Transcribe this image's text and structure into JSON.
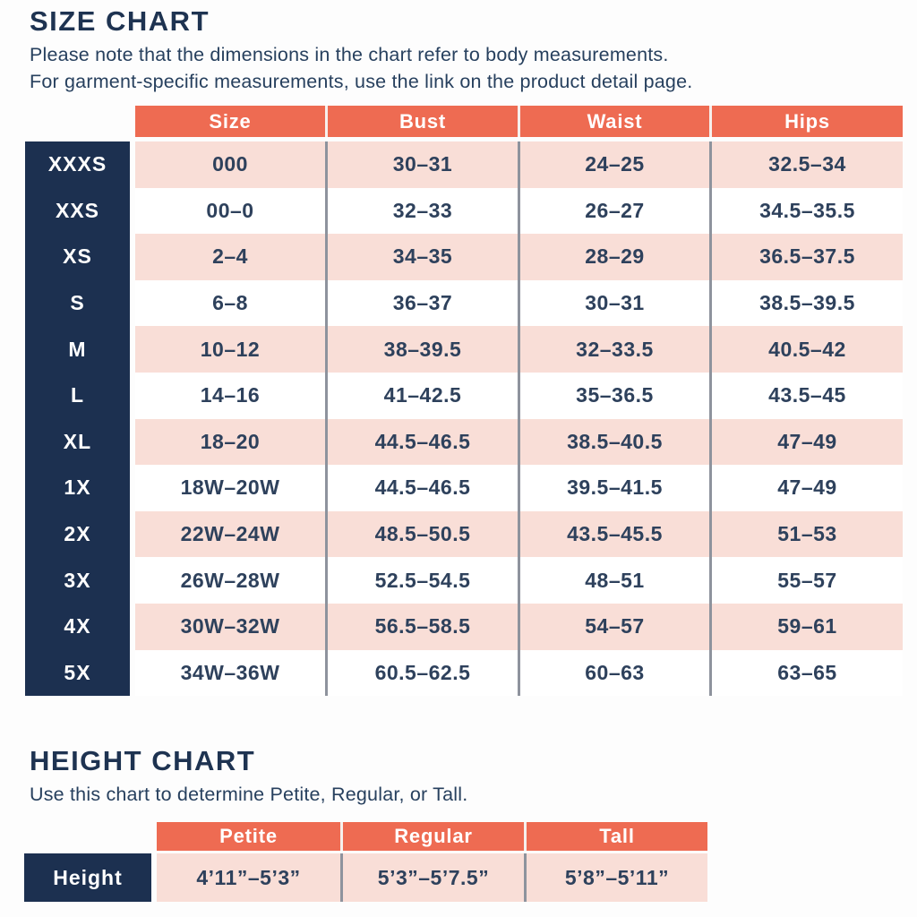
{
  "size_chart": {
    "title": "SIZE CHART",
    "note_line1": "Please note that the dimensions in the chart refer to body measurements.",
    "note_line2": "For garment-specific measurements, use the link on the product detail page.",
    "columns": [
      "Size",
      "Bust",
      "Waist",
      "Hips"
    ],
    "rows": [
      {
        "label": "XXXS",
        "size": "000",
        "bust": "30–31",
        "waist": "24–25",
        "hips": "32.5–34"
      },
      {
        "label": "XXS",
        "size": "00–0",
        "bust": "32–33",
        "waist": "26–27",
        "hips": "34.5–35.5"
      },
      {
        "label": "XS",
        "size": "2–4",
        "bust": "34–35",
        "waist": "28–29",
        "hips": "36.5–37.5"
      },
      {
        "label": "S",
        "size": "6–8",
        "bust": "36–37",
        "waist": "30–31",
        "hips": "38.5–39.5"
      },
      {
        "label": "M",
        "size": "10–12",
        "bust": "38–39.5",
        "waist": "32–33.5",
        "hips": "40.5–42"
      },
      {
        "label": "L",
        "size": "14–16",
        "bust": "41–42.5",
        "waist": "35–36.5",
        "hips": "43.5–45"
      },
      {
        "label": "XL",
        "size": "18–20",
        "bust": "44.5–46.5",
        "waist": "38.5–40.5",
        "hips": "47–49"
      },
      {
        "label": "1X",
        "size": "18W–20W",
        "bust": "44.5–46.5",
        "waist": "39.5–41.5",
        "hips": "47–49"
      },
      {
        "label": "2X",
        "size": "22W–24W",
        "bust": "48.5–50.5",
        "waist": "43.5–45.5",
        "hips": "51–53"
      },
      {
        "label": "3X",
        "size": "26W–28W",
        "bust": "52.5–54.5",
        "waist": "48–51",
        "hips": "55–57"
      },
      {
        "label": "4X",
        "size": "30W–32W",
        "bust": "56.5–58.5",
        "waist": "54–57",
        "hips": "59–61"
      },
      {
        "label": "5X",
        "size": "34W–36W",
        "bust": "60.5–62.5",
        "waist": "60–63",
        "hips": "63–65"
      }
    ]
  },
  "height_chart": {
    "title": "HEIGHT CHART",
    "note": "Use this chart to determine Petite, Regular, or Tall.",
    "columns": [
      "Petite",
      "Regular",
      "Tall"
    ],
    "row_label": "Height",
    "values": [
      "4’11”–5’3”",
      "5’3”–5’7.5”",
      "5’8”–5’11”"
    ]
  },
  "colors": {
    "coral": "#EE6B52",
    "pink": "#F9DED7",
    "navy": "#1C3050",
    "ink": "#2E415C",
    "separator": "#8E939D"
  }
}
